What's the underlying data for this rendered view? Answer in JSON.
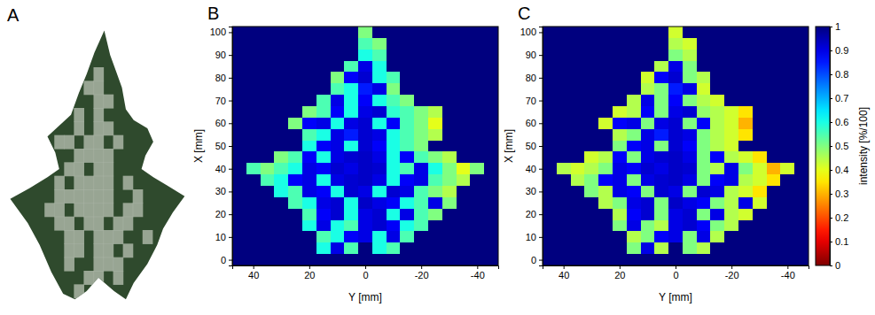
{
  "chart_data": [
    {
      "type": "image",
      "label": "A"
    },
    {
      "type": "heatmap",
      "label": "B",
      "xlabel": "Y [mm]",
      "ylabel": "X [mm]",
      "x": [
        45,
        40,
        35,
        30,
        25,
        20,
        15,
        10,
        5,
        0,
        -5,
        -10,
        -15,
        -20,
        -25,
        -30,
        -35,
        -40,
        -45
      ],
      "y": [
        100,
        95,
        90,
        85,
        80,
        75,
        70,
        65,
        60,
        55,
        50,
        45,
        40,
        35,
        30,
        25,
        20,
        15,
        10,
        5,
        0
      ],
      "xlim": [
        47.5,
        -47.5
      ],
      "ylim": [
        -2.5,
        102.5
      ],
      "xticks": [
        40,
        20,
        0,
        -20,
        -40
      ],
      "yticks": [
        0,
        10,
        20,
        30,
        40,
        50,
        60,
        70,
        80,
        90,
        100
      ],
      "z": [
        [
          1,
          1,
          1,
          1,
          1,
          1,
          1,
          1,
          1,
          0.5,
          1,
          1,
          1,
          1,
          1,
          1,
          1,
          1,
          1
        ],
        [
          1,
          1,
          1,
          1,
          1,
          1,
          1,
          1,
          1,
          0.55,
          0.5,
          1,
          1,
          1,
          1,
          1,
          1,
          1,
          1
        ],
        [
          1,
          1,
          1,
          1,
          1,
          1,
          1,
          1,
          1,
          0.6,
          0.55,
          1,
          1,
          1,
          1,
          1,
          1,
          1,
          1
        ],
        [
          1,
          1,
          1,
          1,
          1,
          1,
          1,
          1,
          0.55,
          0.9,
          0.6,
          1,
          1,
          1,
          1,
          1,
          1,
          1,
          1
        ],
        [
          1,
          1,
          1,
          1,
          1,
          1,
          1,
          0.5,
          0.88,
          0.92,
          0.6,
          0.55,
          1,
          1,
          1,
          1,
          1,
          1,
          1
        ],
        [
          1,
          1,
          1,
          1,
          1,
          1,
          1,
          0.55,
          0.6,
          0.85,
          0.9,
          0.5,
          1,
          1,
          1,
          1,
          1,
          1,
          1
        ],
        [
          1,
          1,
          1,
          1,
          1,
          1,
          0.55,
          0.9,
          0.6,
          0.88,
          0.6,
          0.55,
          0.5,
          1,
          1,
          1,
          1,
          1,
          1
        ],
        [
          1,
          1,
          1,
          1,
          1,
          0.5,
          0.55,
          0.88,
          0.6,
          0.9,
          0.92,
          0.58,
          0.55,
          0.5,
          0.45,
          1,
          1,
          1,
          1
        ],
        [
          1,
          1,
          1,
          1,
          0.5,
          0.88,
          0.9,
          0.6,
          0.9,
          0.92,
          0.6,
          0.88,
          0.55,
          0.5,
          0.4,
          1,
          1,
          1,
          1
        ],
        [
          1,
          1,
          1,
          1,
          1,
          0.55,
          0.6,
          0.9,
          0.85,
          0.92,
          0.9,
          0.6,
          0.55,
          0.5,
          0.45,
          1,
          1,
          1,
          1
        ],
        [
          1,
          1,
          1,
          1,
          1,
          0.6,
          0.88,
          0.9,
          0.6,
          0.92,
          0.88,
          0.6,
          0.55,
          0.5,
          1,
          1,
          1,
          1,
          1
        ],
        [
          1,
          1,
          1,
          0.5,
          0.55,
          0.88,
          0.6,
          0.9,
          0.92,
          0.93,
          0.9,
          0.6,
          0.88,
          0.55,
          0.5,
          0.45,
          1,
          1,
          1
        ],
        [
          1,
          0.55,
          0.5,
          0.55,
          0.6,
          0.9,
          0.88,
          0.92,
          0.9,
          0.93,
          0.92,
          0.6,
          0.55,
          0.9,
          0.6,
          0.5,
          0.4,
          0.5,
          1
        ],
        [
          1,
          1,
          0.55,
          0.6,
          0.88,
          0.9,
          0.6,
          0.9,
          0.92,
          0.93,
          0.9,
          0.6,
          0.88,
          0.9,
          0.55,
          0.5,
          0.45,
          1,
          1
        ],
        [
          1,
          1,
          1,
          0.6,
          0.55,
          0.9,
          0.88,
          0.6,
          0.92,
          0.9,
          0.6,
          0.92,
          0.9,
          0.55,
          0.5,
          0.45,
          1,
          1,
          1
        ],
        [
          1,
          1,
          1,
          1,
          0.55,
          0.6,
          0.9,
          0.92,
          0.6,
          0.93,
          0.9,
          0.88,
          0.6,
          0.55,
          0.9,
          0.5,
          1,
          1,
          1
        ],
        [
          1,
          1,
          1,
          1,
          1,
          0.55,
          0.88,
          0.92,
          0.6,
          0.9,
          0.92,
          0.6,
          0.9,
          0.55,
          0.5,
          1,
          1,
          1,
          1
        ],
        [
          1,
          1,
          1,
          1,
          1,
          0.6,
          0.9,
          0.6,
          0.55,
          0.9,
          0.92,
          0.88,
          0.6,
          0.55,
          1,
          1,
          1,
          1,
          1
        ],
        [
          1,
          1,
          1,
          1,
          1,
          1,
          0.55,
          0.6,
          0.88,
          0.9,
          0.6,
          0.9,
          0.55,
          1,
          1,
          1,
          1,
          1,
          1
        ],
        [
          1,
          1,
          1,
          1,
          1,
          1,
          0.6,
          0.9,
          0.55,
          1,
          0.6,
          0.55,
          1,
          1,
          1,
          1,
          1,
          1,
          1
        ],
        [
          1,
          1,
          1,
          1,
          1,
          1,
          1,
          1,
          1,
          1,
          1,
          1,
          1,
          1,
          1,
          1,
          1,
          1,
          1
        ]
      ]
    },
    {
      "type": "heatmap",
      "label": "C",
      "xlabel": "Y [mm]",
      "ylabel": "X [mm]",
      "x": [
        45,
        40,
        35,
        30,
        25,
        20,
        15,
        10,
        5,
        0,
        -5,
        -10,
        -15,
        -20,
        -25,
        -30,
        -35,
        -40,
        -45
      ],
      "y": [
        100,
        95,
        90,
        85,
        80,
        75,
        70,
        65,
        60,
        55,
        50,
        45,
        40,
        35,
        30,
        25,
        20,
        15,
        10,
        5,
        0
      ],
      "xlim": [
        47.5,
        -47.5
      ],
      "ylim": [
        -2.5,
        102.5
      ],
      "xticks": [
        40,
        20,
        0,
        -20,
        -40
      ],
      "yticks": [
        0,
        10,
        20,
        30,
        40,
        50,
        60,
        70,
        80,
        90,
        100
      ],
      "z": [
        [
          1,
          1,
          1,
          1,
          1,
          1,
          1,
          1,
          1,
          0.42,
          1,
          1,
          1,
          1,
          1,
          1,
          1,
          1,
          1
        ],
        [
          1,
          1,
          1,
          1,
          1,
          1,
          1,
          1,
          1,
          0.45,
          0.42,
          1,
          1,
          1,
          1,
          1,
          1,
          1,
          1
        ],
        [
          1,
          1,
          1,
          1,
          1,
          1,
          1,
          1,
          1,
          0.5,
          0.45,
          1,
          1,
          1,
          1,
          1,
          1,
          1,
          1
        ],
        [
          1,
          1,
          1,
          1,
          1,
          1,
          1,
          1,
          0.45,
          0.9,
          0.5,
          1,
          1,
          1,
          1,
          1,
          1,
          1,
          1
        ],
        [
          1,
          1,
          1,
          1,
          1,
          1,
          1,
          0.42,
          0.88,
          0.92,
          0.5,
          0.45,
          1,
          1,
          1,
          1,
          1,
          1,
          1
        ],
        [
          1,
          1,
          1,
          1,
          1,
          1,
          1,
          0.45,
          0.5,
          0.85,
          0.9,
          0.42,
          1,
          1,
          1,
          1,
          1,
          1,
          1
        ],
        [
          1,
          1,
          1,
          1,
          1,
          1,
          0.45,
          0.9,
          0.5,
          0.88,
          0.5,
          0.45,
          0.42,
          1,
          1,
          1,
          1,
          1,
          1
        ],
        [
          1,
          1,
          1,
          1,
          1,
          0.42,
          0.45,
          0.88,
          0.5,
          0.9,
          0.92,
          0.48,
          0.45,
          0.42,
          0.35,
          1,
          1,
          1,
          1
        ],
        [
          1,
          1,
          1,
          1,
          0.42,
          0.88,
          0.9,
          0.5,
          0.9,
          0.92,
          0.5,
          0.88,
          0.45,
          0.42,
          0.3,
          1,
          1,
          1,
          1
        ],
        [
          1,
          1,
          1,
          1,
          1,
          0.45,
          0.5,
          0.9,
          0.85,
          0.92,
          0.9,
          0.5,
          0.45,
          0.42,
          0.35,
          1,
          1,
          1,
          1
        ],
        [
          1,
          1,
          1,
          1,
          1,
          0.5,
          0.88,
          0.9,
          0.5,
          0.92,
          0.88,
          0.5,
          0.45,
          0.42,
          1,
          1,
          1,
          1,
          1
        ],
        [
          1,
          1,
          1,
          0.42,
          0.45,
          0.88,
          0.5,
          0.9,
          0.92,
          0.93,
          0.9,
          0.5,
          0.88,
          0.45,
          0.42,
          0.35,
          1,
          1,
          1
        ],
        [
          1,
          0.45,
          0.42,
          0.45,
          0.5,
          0.9,
          0.88,
          0.92,
          0.9,
          0.93,
          0.92,
          0.5,
          0.45,
          0.9,
          0.5,
          0.42,
          0.3,
          0.42,
          1
        ],
        [
          1,
          1,
          0.45,
          0.5,
          0.88,
          0.9,
          0.5,
          0.9,
          0.92,
          0.93,
          0.9,
          0.5,
          0.88,
          0.9,
          0.45,
          0.42,
          0.35,
          1,
          1
        ],
        [
          1,
          1,
          1,
          0.5,
          0.45,
          0.9,
          0.88,
          0.5,
          0.92,
          0.9,
          0.5,
          0.92,
          0.9,
          0.45,
          0.42,
          0.35,
          1,
          1,
          1
        ],
        [
          1,
          1,
          1,
          1,
          0.45,
          0.5,
          0.9,
          0.92,
          0.5,
          0.93,
          0.9,
          0.88,
          0.5,
          0.45,
          0.9,
          0.42,
          1,
          1,
          1
        ],
        [
          1,
          1,
          1,
          1,
          1,
          0.45,
          0.88,
          0.92,
          0.5,
          0.9,
          0.92,
          0.5,
          0.9,
          0.45,
          0.42,
          1,
          1,
          1,
          1
        ],
        [
          1,
          1,
          1,
          1,
          1,
          0.5,
          0.9,
          0.5,
          0.45,
          0.9,
          0.92,
          0.88,
          0.5,
          0.45,
          1,
          1,
          1,
          1,
          1
        ],
        [
          1,
          1,
          1,
          1,
          1,
          1,
          0.45,
          0.5,
          0.88,
          0.9,
          0.5,
          0.9,
          0.45,
          1,
          1,
          1,
          1,
          1,
          1
        ],
        [
          1,
          1,
          1,
          1,
          1,
          1,
          0.5,
          0.9,
          0.45,
          1,
          0.5,
          0.45,
          1,
          1,
          1,
          1,
          1,
          1,
          1
        ],
        [
          1,
          1,
          1,
          1,
          1,
          1,
          1,
          1,
          1,
          1,
          1,
          1,
          1,
          1,
          1,
          1,
          1,
          1,
          1
        ]
      ],
      "colorbar": {
        "label": "intensity [%/100]",
        "range": [
          0,
          1
        ],
        "ticks": [
          0,
          0.1,
          0.2,
          0.3,
          0.4,
          0.5,
          0.6,
          0.7,
          0.8,
          0.9,
          1
        ]
      }
    }
  ]
}
